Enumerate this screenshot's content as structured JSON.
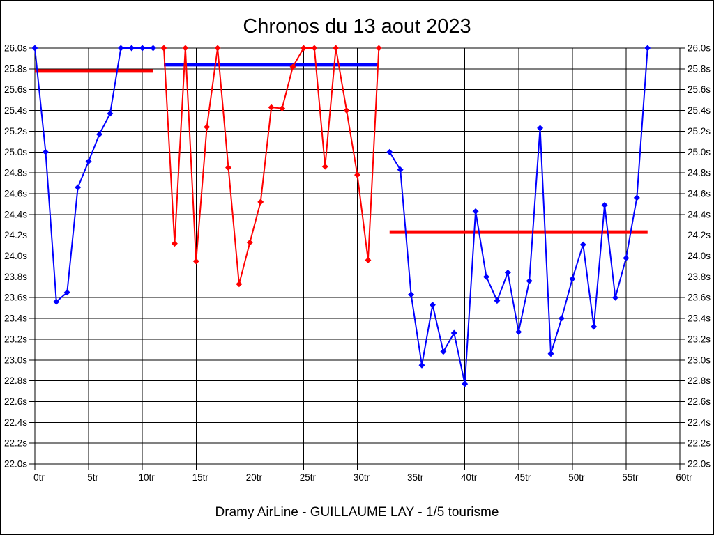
{
  "caption": "Dramy AirLine - GUILLAUME LAY - 1/5 tourisme",
  "chart_data": {
    "type": "line",
    "title": "Chronos du 13 aout 2023",
    "xlabel": "",
    "ylabel": "",
    "x_unit": "tr",
    "y_unit": "s",
    "xlim": [
      0,
      60
    ],
    "ylim": [
      22.0,
      26.0
    ],
    "grid": true,
    "legend_position": "none",
    "x_ticks": [
      {
        "value": 0,
        "label": "0tr"
      },
      {
        "value": 5,
        "label": "5tr"
      },
      {
        "value": 10,
        "label": "10tr"
      },
      {
        "value": 15,
        "label": "15tr"
      },
      {
        "value": 20,
        "label": "20tr"
      },
      {
        "value": 25,
        "label": "25tr"
      },
      {
        "value": 30,
        "label": "30tr"
      },
      {
        "value": 35,
        "label": "35tr"
      },
      {
        "value": 40,
        "label": "40tr"
      },
      {
        "value": 45,
        "label": "45tr"
      },
      {
        "value": 50,
        "label": "50tr"
      },
      {
        "value": 55,
        "label": "55tr"
      },
      {
        "value": 60,
        "label": "60tr"
      }
    ],
    "y_ticks": [
      {
        "value": 26.0,
        "label": "26.0s"
      },
      {
        "value": 25.8,
        "label": "25.8s"
      },
      {
        "value": 25.6,
        "label": "25.6s"
      },
      {
        "value": 25.4,
        "label": "25.4s"
      },
      {
        "value": 25.2,
        "label": "25.2s"
      },
      {
        "value": 25.0,
        "label": "25.0s"
      },
      {
        "value": 24.8,
        "label": "24.8s"
      },
      {
        "value": 24.6,
        "label": "24.6s"
      },
      {
        "value": 24.4,
        "label": "24.4s"
      },
      {
        "value": 24.2,
        "label": "24.2s"
      },
      {
        "value": 24.0,
        "label": "24.0s"
      },
      {
        "value": 23.8,
        "label": "23.8s"
      },
      {
        "value": 23.6,
        "label": "23.6s"
      },
      {
        "value": 23.4,
        "label": "23.4s"
      },
      {
        "value": 23.2,
        "label": "23.2s"
      },
      {
        "value": 23.0,
        "label": "23.0s"
      },
      {
        "value": 22.8,
        "label": "22.8s"
      },
      {
        "value": 22.6,
        "label": "22.6s"
      },
      {
        "value": 22.4,
        "label": "22.4s"
      },
      {
        "value": 22.2,
        "label": "22.2s"
      },
      {
        "value": 22.0,
        "label": "22.0s"
      }
    ],
    "series": [
      {
        "name": "stint-1-blue",
        "color": "#0000ff",
        "x": [
          0,
          1,
          2,
          3,
          4,
          5,
          6,
          7,
          8,
          9,
          10,
          11
        ],
        "y": [
          26.0,
          25.0,
          23.56,
          23.65,
          24.66,
          24.91,
          25.17,
          25.37,
          26.0,
          26.0,
          26.0,
          26.0
        ]
      },
      {
        "name": "stint-2-red",
        "color": "#ff0000",
        "x": [
          12,
          13,
          14,
          15,
          16,
          17,
          18,
          19,
          20,
          21,
          22,
          23,
          24,
          25,
          26,
          27,
          28,
          29,
          30,
          31,
          32
        ],
        "y": [
          26.0,
          24.12,
          26.0,
          23.95,
          25.24,
          26.0,
          24.85,
          23.73,
          24.13,
          24.52,
          25.43,
          25.42,
          25.82,
          26.0,
          26.0,
          24.86,
          26.0,
          25.4,
          24.78,
          23.96,
          26.0
        ]
      },
      {
        "name": "stint-3-blue",
        "color": "#0000ff",
        "x": [
          33,
          34,
          35,
          36,
          37,
          38,
          39,
          40,
          41,
          42,
          43,
          44,
          45,
          46,
          47,
          48,
          49,
          50,
          51,
          52,
          53,
          54,
          55,
          56,
          57
        ],
        "y": [
          25.0,
          24.83,
          23.63,
          22.95,
          23.53,
          23.08,
          23.26,
          22.77,
          24.43,
          23.8,
          23.57,
          23.84,
          23.27,
          23.76,
          25.23,
          23.06,
          23.4,
          23.78,
          24.11,
          23.32,
          24.49,
          23.6,
          23.98,
          24.56,
          26.0
        ]
      }
    ],
    "reference_lines": [
      {
        "name": "avg-stint-1",
        "color": "#ff0000",
        "x_start": 0,
        "x_end": 11,
        "y": 25.78
      },
      {
        "name": "avg-stint-2",
        "color": "#0000ff",
        "x_start": 12,
        "x_end": 32,
        "y": 25.84
      },
      {
        "name": "avg-stint-3",
        "color": "#ff0000",
        "x_start": 33,
        "x_end": 57,
        "y": 24.23
      }
    ]
  }
}
